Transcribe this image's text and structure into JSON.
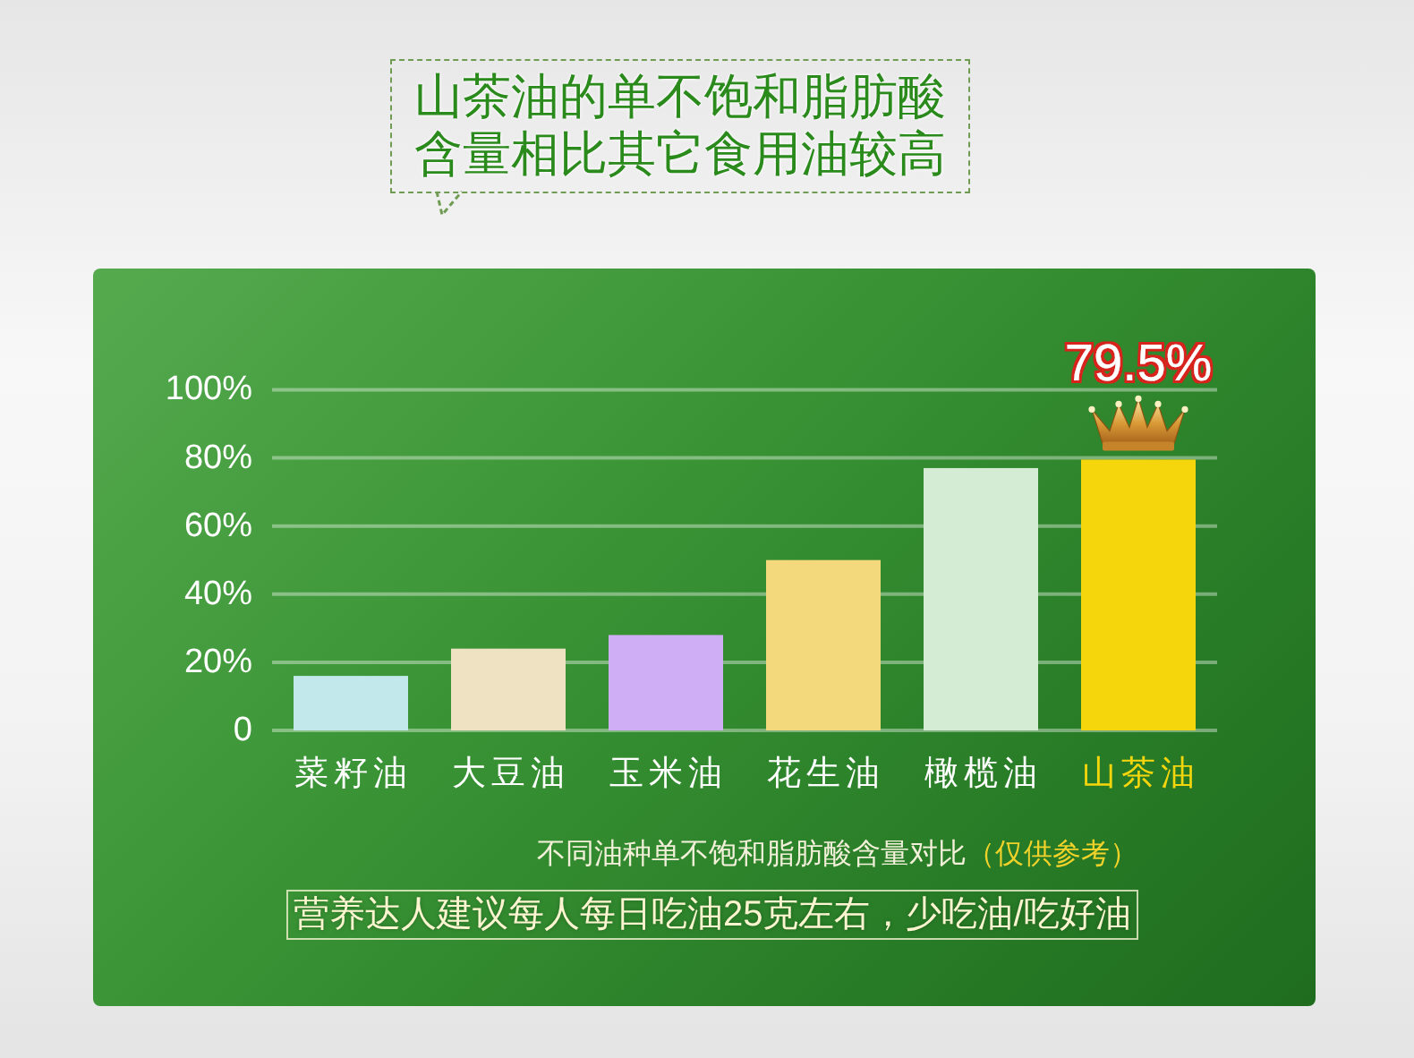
{
  "chart_data": {
    "type": "bar",
    "title": "山茶油的单不饱和脂肪酸含量相比其它食用油较高",
    "categories": [
      "菜籽油",
      "大豆油",
      "玉米油",
      "花生油",
      "橄榄油",
      "山茶油"
    ],
    "values": [
      16,
      24,
      28,
      50,
      77,
      79.5
    ],
    "colors": [
      "#c3e8ec",
      "#eee2c3",
      "#cfaef5",
      "#f3d87c",
      "#d4ebd4",
      "#f5d60d"
    ],
    "value_labels": [
      null,
      null,
      null,
      null,
      null,
      "79.5%"
    ],
    "ylim": [
      0,
      100
    ],
    "yticks": [
      0,
      {
        "value": 20,
        "label": "20%"
      },
      {
        "value": 40,
        "label": "40%"
      },
      {
        "value": 60,
        "label": "60%"
      },
      {
        "value": 80,
        "label": "80%"
      },
      {
        "value": 100,
        "label": "100%"
      }
    ],
    "grid": "y",
    "annotations": [
      "不同油种单不饱和脂肪酸含量对比",
      "（仅供参考）",
      "营养达人建议每人每日吃油25克左右，少吃油/吃好油"
    ]
  }
}
